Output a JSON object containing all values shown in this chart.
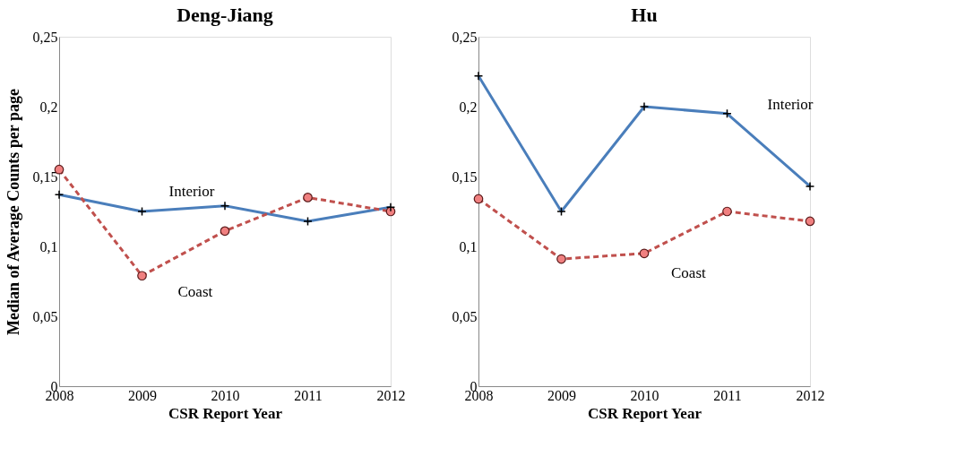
{
  "chart_data": [
    {
      "type": "line",
      "title": "Deng-Jiang",
      "xlabel": "CSR Report Year",
      "ylabel": "Median of Average Counts per page",
      "categories": [
        "2008",
        "2009",
        "2010",
        "2011",
        "2012"
      ],
      "ylim": [
        0,
        0.25
      ],
      "yticks": [
        {
          "value": 0,
          "label": "0"
        },
        {
          "value": 0.05,
          "label": "0,05"
        },
        {
          "value": 0.1,
          "label": "0,1"
        },
        {
          "value": 0.15,
          "label": "0,15"
        },
        {
          "value": 0.2,
          "label": "0,2"
        },
        {
          "value": 0.25,
          "label": "0,25"
        }
      ],
      "grid": false,
      "legend": false,
      "series": [
        {
          "name": "Interior",
          "color": "#4a7ebb",
          "line_style": "solid",
          "marker": "cross",
          "values": [
            0.137,
            0.125,
            0.129,
            0.118,
            0.128
          ]
        },
        {
          "name": "Coast",
          "color": "#c0504d",
          "line_style": "dashed",
          "marker": "circle",
          "values": [
            0.155,
            0.079,
            0.111,
            0.135,
            0.125
          ]
        }
      ]
    },
    {
      "type": "line",
      "title": "Hu",
      "xlabel": "CSR Report Year",
      "categories": [
        "2008",
        "2009",
        "2010",
        "2011",
        "2012"
      ],
      "ylim": [
        0,
        0.25
      ],
      "yticks": [
        {
          "value": 0,
          "label": "0"
        },
        {
          "value": 0.05,
          "label": "0,05"
        },
        {
          "value": 0.1,
          "label": "0,1"
        },
        {
          "value": 0.15,
          "label": "0,15"
        },
        {
          "value": 0.2,
          "label": "0,2"
        },
        {
          "value": 0.25,
          "label": "0,25"
        }
      ],
      "grid": false,
      "legend": false,
      "series": [
        {
          "name": "Interior",
          "color": "#4a7ebb",
          "line_style": "solid",
          "marker": "cross",
          "values": [
            0.222,
            0.125,
            0.2,
            0.195,
            0.143
          ]
        },
        {
          "name": "Coast",
          "color": "#c0504d",
          "line_style": "dashed",
          "marker": "circle",
          "values": [
            0.134,
            0.091,
            0.095,
            0.125,
            0.118
          ]
        }
      ]
    }
  ]
}
